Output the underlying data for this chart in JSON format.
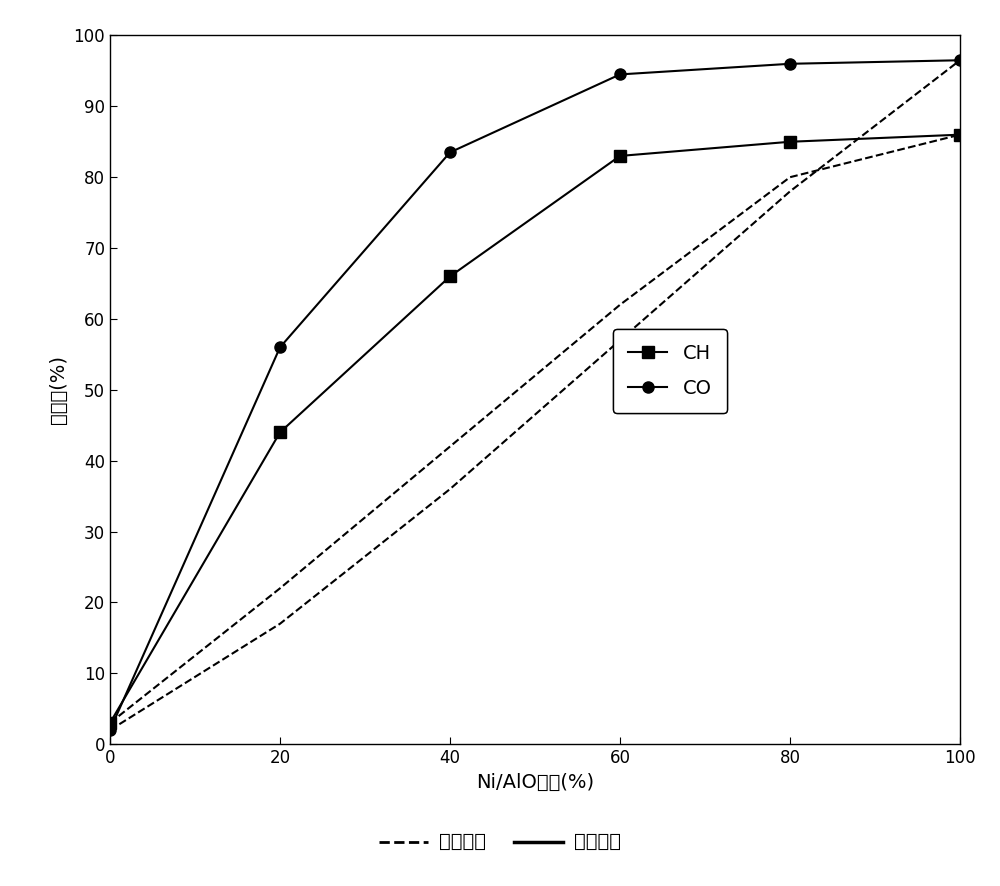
{
  "x": [
    0,
    20,
    40,
    60,
    80,
    100
  ],
  "ch4_exp": [
    3,
    44,
    66,
    83,
    85,
    86
  ],
  "co2_exp": [
    2,
    56,
    83.5,
    94.5,
    96,
    96.5
  ],
  "ch4_calc": [
    3,
    22,
    42,
    62,
    80,
    86
  ],
  "co2_calc": [
    2,
    17,
    36,
    57,
    78,
    96.5
  ],
  "xlabel": "Ni/AlO含量(%)",
  "ylabel": "转化率(%)",
  "legend_exp": "实验结果",
  "legend_calc": "计算结果",
  "legend_ch4": "CH",
  "legend_co": "CO",
  "xlim": [
    0,
    100
  ],
  "ylim": [
    0,
    100
  ],
  "xticks": [
    0,
    20,
    40,
    60,
    80,
    100
  ],
  "yticks": [
    0,
    10,
    20,
    30,
    40,
    50,
    60,
    70,
    80,
    90,
    100
  ],
  "color": "#000000",
  "bg_color": "#ffffff",
  "figsize": [
    10.0,
    8.86
  ],
  "dpi": 100
}
